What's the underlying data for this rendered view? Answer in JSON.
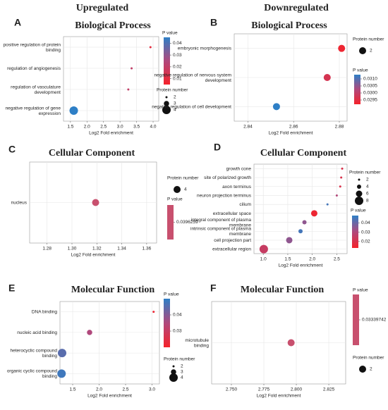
{
  "headers": [
    "Upregulated",
    "Downregulated"
  ],
  "chart_data": [
    {
      "type": "bubble",
      "panel": "A",
      "title": "Biological Process",
      "categories": [
        "positive regulation of protein binding",
        "regulation of angiogenesis",
        "regulation of vasculature development",
        "negative regulation of gene expression"
      ],
      "values": [
        3.92,
        3.35,
        3.25,
        1.6
      ],
      "sizes": [
        2,
        2,
        2,
        4
      ],
      "pvalues": [
        0.01,
        0.02,
        0.02,
        0.045
      ],
      "xlim": [
        1.29,
        4.17
      ],
      "xticks": [
        {
          "value": 1.5,
          "label": "1.5"
        },
        {
          "value": 2,
          "label": "2.0"
        },
        {
          "value": 2.5,
          "label": "2.5"
        },
        {
          "value": 3,
          "label": "3.0"
        },
        {
          "value": 3.5,
          "label": "3.5"
        },
        {
          "value": 4,
          "label": "4.0"
        }
      ],
      "xlabel": "Log2 Fold enrichment",
      "color_label": "P value",
      "size_label": "Protein number",
      "clim": [
        0.005,
        0.045
      ],
      "cticks": [
        0.04,
        0.03,
        0.02,
        0.01
      ],
      "size_ticks": [
        2,
        3,
        4
      ],
      "cmap": [
        "#f5222a",
        "#2e7fc6"
      ],
      "grid": true
    },
    {
      "type": "bubble",
      "panel": "B",
      "title": "Biological Process",
      "categories": [
        "embryonic morphogenesis",
        "negative regulation of nervous system development",
        "negative regulation of cell development"
      ],
      "values": [
        2.881,
        2.8747,
        2.8525
      ],
      "sizes": [
        2,
        2,
        2
      ],
      "pvalues": [
        0.0293,
        0.0297,
        0.0313
      ],
      "xlim": [
        2.834,
        2.8834
      ],
      "xticks": [
        2.84,
        2.86,
        2.88
      ],
      "xlabel": "Log2 Fold enrichment",
      "color_label": "P value",
      "size_label": "Protein number",
      "clim": [
        0.0292,
        0.0313
      ],
      "cticks": [
        {
          "value": 0.031,
          "label": "0.0310"
        },
        0.0305,
        {
          "value": 0.03,
          "label": "0.0300"
        },
        0.0295
      ],
      "size_ticks": [
        2
      ],
      "cmap": [
        "#f5222a",
        "#2e7fc6"
      ],
      "grid": true
    },
    {
      "type": "bubble",
      "panel": "C",
      "title": "Cellular Component",
      "categories": [
        "nucleus"
      ],
      "values": [
        1.319
      ],
      "sizes": [
        4
      ],
      "pvalues": [
        0.0396259
      ],
      "xlim": [
        1.266,
        1.368
      ],
      "xticks": [
        {
          "value": 1.28,
          "label": "1.28"
        },
        {
          "value": 1.3,
          "label": "1.30"
        },
        1.32,
        1.34,
        1.36
      ],
      "xlabel": "Log2 Fold enrichment",
      "color_label": "P value",
      "size_label": "Protein number",
      "cticks": [
        0.0396259
      ],
      "size_ticks": [
        4
      ],
      "cmap": [
        "#c8506e",
        "#c8506e"
      ],
      "grid": true
    },
    {
      "type": "bubble",
      "panel": "D",
      "title": "Cellular Component",
      "categories": [
        "growth cone",
        "site of polarized growth",
        "axon terminus",
        "neuron projection terminus",
        "cilium",
        "extracellular space",
        "integral component of plasma membrane",
        "intrinsic component of plasma membrane",
        "cell projection part",
        "extracellular region"
      ],
      "values": [
        2.61,
        2.59,
        2.57,
        2.5,
        2.31,
        2.04,
        1.84,
        1.76,
        1.53,
        1.01
      ],
      "sizes": [
        2,
        2,
        2,
        2,
        2,
        6,
        4,
        4,
        6,
        8
      ],
      "pvalues": [
        0.02,
        0.02,
        0.02,
        0.03,
        0.045,
        0.015,
        0.035,
        0.045,
        0.035,
        0.025
      ],
      "xlim": [
        0.81,
        2.71
      ],
      "xticks": [
        {
          "value": 1,
          "label": "1.0"
        },
        {
          "value": 1.5,
          "label": "1.5"
        },
        {
          "value": 2,
          "label": "2.0"
        },
        {
          "value": 2.5,
          "label": "2.5"
        }
      ],
      "xlabel": "Log2 Fold enrichment",
      "color_label": "P value",
      "size_label": "Protein number",
      "clim": [
        0.013,
        0.048
      ],
      "cticks": [
        0.04,
        0.03,
        0.02
      ],
      "size_ticks": [
        2,
        4,
        6,
        8
      ],
      "cmap": [
        "#f5222a",
        "#2e7fc6"
      ],
      "grid": true
    },
    {
      "type": "bubble",
      "panel": "E",
      "title": "Molecular Function",
      "categories": [
        "DNA binding",
        "nucleic acid binding",
        "heterocyclic compound binding",
        "organic cyclic compound binding"
      ],
      "values": [
        3.03,
        1.82,
        1.3,
        1.29
      ],
      "sizes": [
        2,
        3,
        4,
        4
      ],
      "pvalues": [
        0.022,
        0.035,
        0.045,
        0.048
      ],
      "xlim": [
        1.26,
        3.14
      ],
      "xticks": [
        {
          "value": 1.5,
          "label": "1.5"
        },
        {
          "value": 2,
          "label": "2.0"
        },
        {
          "value": 2.5,
          "label": "2.5"
        },
        {
          "value": 3,
          "label": "3.0"
        }
      ],
      "xlabel": "Log2 Fold enrichment",
      "color_label": "P value",
      "size_label": "Protein number",
      "clim": [
        0.02,
        0.05
      ],
      "cticks": [
        0.04,
        0.03
      ],
      "size_ticks": [
        2,
        3,
        4
      ],
      "cmap": [
        "#f5222a",
        "#2e7fc6"
      ],
      "grid": true
    },
    {
      "type": "bubble",
      "panel": "F",
      "title": "Molecular Function",
      "categories": [
        "microtubule binding"
      ],
      "values": [
        2.796
      ],
      "sizes": [
        2
      ],
      "pvalues": [
        0.03339742
      ],
      "xlim": [
        2.7348,
        2.838
      ],
      "xticks": [
        {
          "value": 2.75,
          "label": "2.750"
        },
        2.775,
        {
          "value": 2.8,
          "label": "2.800"
        },
        2.825
      ],
      "xlabel": "Log2 Fold enrichment",
      "color_label": "P value",
      "size_label": "Protein number",
      "cticks": [
        0.03339742
      ],
      "size_ticks": [
        2
      ],
      "cmap": [
        "#c8506e",
        "#c8506e"
      ],
      "grid": true
    }
  ]
}
